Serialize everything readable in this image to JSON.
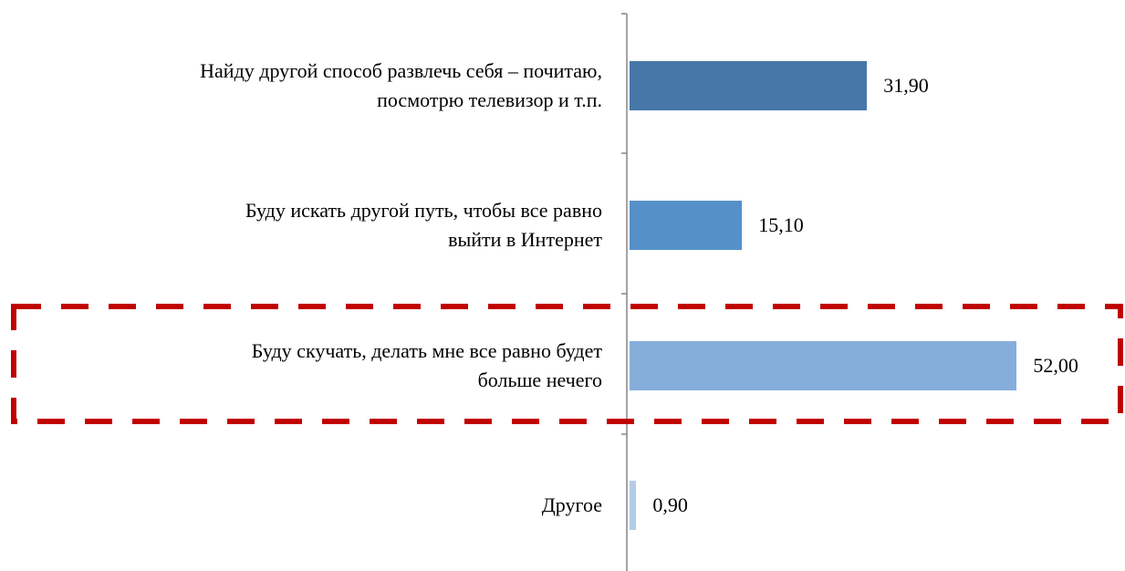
{
  "chart_data": {
    "type": "barh",
    "categories": [
      "Найду другой способ развлечь себя – почитаю,\nпосмотрю телевизор и т.п.",
      "Буду искать другой путь, чтобы все равно\nвыйти в Интернет",
      "Буду скучать, делать мне все равно будет\nбольше нечего",
      "Другое"
    ],
    "values": [
      31.9,
      15.1,
      52.0,
      0.9
    ],
    "value_labels": [
      "31,90",
      "15,10",
      "52,00",
      "0,90"
    ],
    "colors": [
      "#4677a8",
      "#5590c8",
      "#86aedb",
      "#b4cbe7"
    ]
  }
}
